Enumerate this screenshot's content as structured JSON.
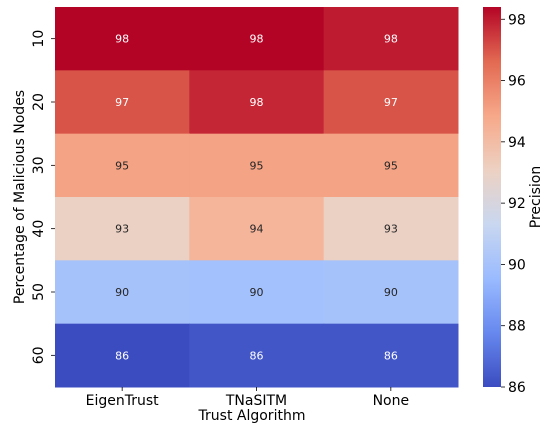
{
  "chart_data": {
    "type": "heatmap",
    "title": "",
    "xlabel": "Trust Algorithm",
    "ylabel": "Percentage of Malicious Nodes",
    "colorbar_label": "Precision",
    "x_categories": [
      "EigenTrust",
      "TNaSITM",
      "None"
    ],
    "y_categories": [
      "10",
      "20",
      "30",
      "40",
      "50",
      "60"
    ],
    "values": [
      [
        98.4,
        98.4,
        98.0
      ],
      [
        97.0,
        97.8,
        97.0
      ],
      [
        95.0,
        95.0,
        95.0
      ],
      [
        93.0,
        94.3,
        93.0
      ],
      [
        90.0,
        89.9,
        90.0
      ],
      [
        86.0,
        86.3,
        86.3
      ]
    ],
    "cell_labels": [
      [
        "98",
        "98",
        "98"
      ],
      [
        "97",
        "98",
        "97"
      ],
      [
        "95",
        "95",
        "95"
      ],
      [
        "93",
        "94",
        "93"
      ],
      [
        "90",
        "90",
        "90"
      ],
      [
        "86",
        "86",
        "86"
      ]
    ],
    "colorbar_range": [
      86,
      98.4
    ],
    "colorbar_ticks": [
      86,
      88,
      90,
      92,
      94,
      96,
      98
    ],
    "colormap": "coolwarm",
    "colorscale_stops": [
      "#3b4cc0",
      "#6788ee",
      "#9abbff",
      "#c9d7f0",
      "#edd1c2",
      "#f7a889",
      "#e26952",
      "#b40426"
    ],
    "grid": false
  }
}
